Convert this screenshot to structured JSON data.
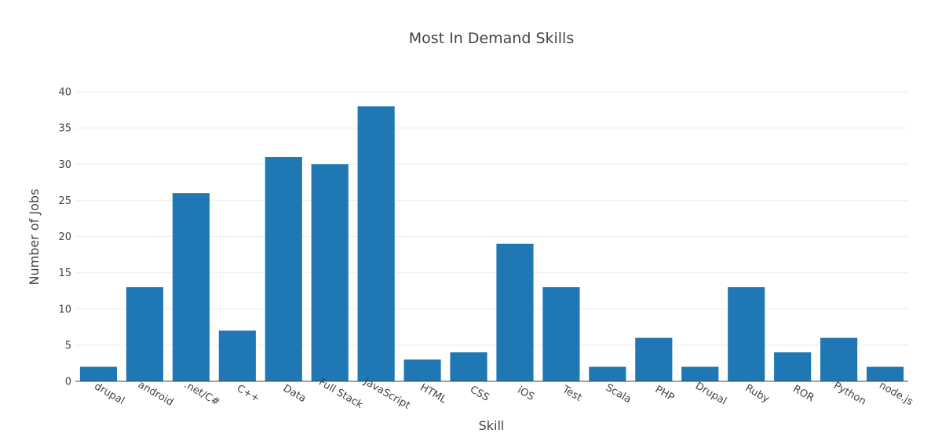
{
  "chart_data": {
    "type": "bar",
    "title": "Most In Demand Skills",
    "xlabel": "Skill",
    "ylabel": "Number of Jobs",
    "categories": [
      "drupal",
      "android",
      ".net/C#",
      "C++",
      "Data",
      "Full Stack",
      "JavaScript",
      "HTML",
      "CSS",
      "iOS",
      "Test",
      "Scala",
      "PHP",
      "Drupal",
      "Ruby",
      "ROR",
      "Python",
      "node.js"
    ],
    "values": [
      2,
      13,
      26,
      7,
      31,
      30,
      38,
      3,
      4,
      19,
      13,
      2,
      6,
      2,
      13,
      4,
      6,
      2
    ],
    "ylim": [
      0,
      40
    ],
    "yticks": [
      0,
      5,
      10,
      15,
      20,
      25,
      30,
      35,
      40
    ],
    "grid": true,
    "legend": "none",
    "bar_color": "#1f77b4"
  }
}
